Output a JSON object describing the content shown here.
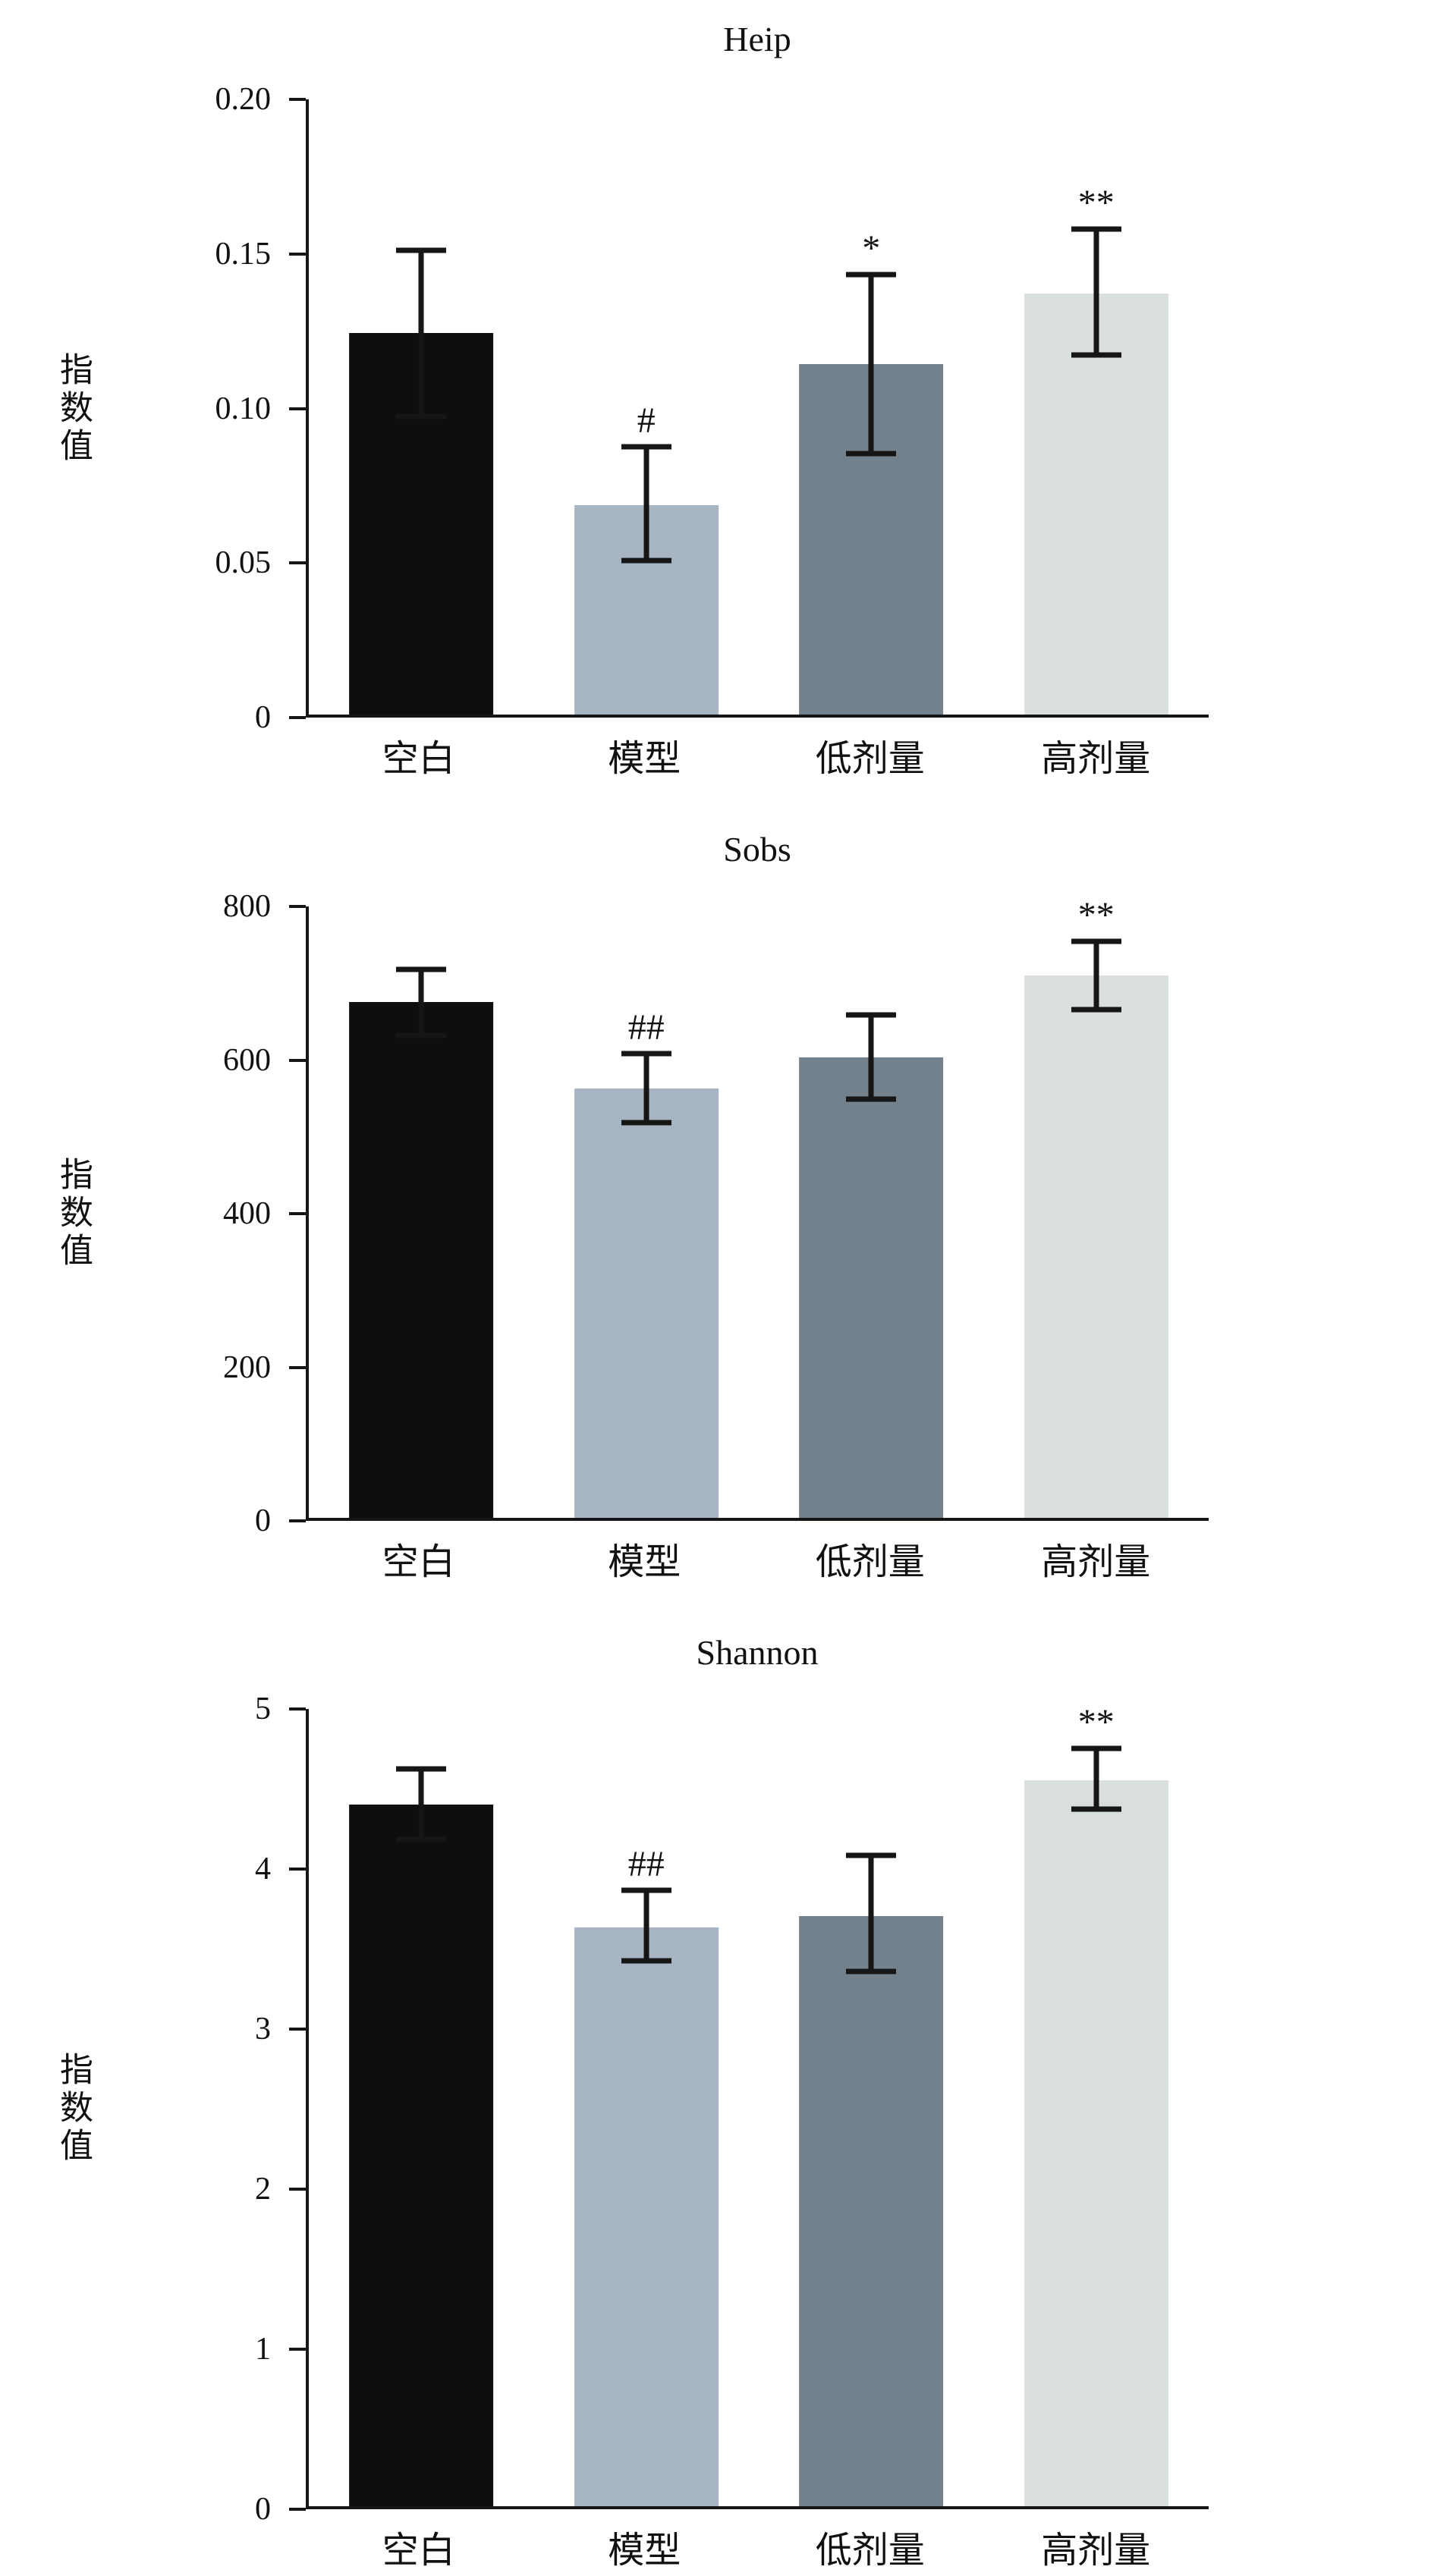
{
  "page": {
    "background": "#ffffff"
  },
  "style": {
    "bar_colors": [
      "#0e0e0e",
      "#a6b5c1",
      "#73818c",
      "#d9dfdf"
    ],
    "axis_color": "#161616",
    "error_color": "#161616"
  },
  "chart_data": [
    {
      "type": "bar",
      "title": "Heip",
      "ylabel": "指数值",
      "ylim": [
        0,
        0.2
      ],
      "yticks": [
        0,
        0.05,
        0.1,
        0.15,
        0.2
      ],
      "ytick_labels": [
        "0",
        "0.05",
        "0.10",
        "0.15",
        "0.20"
      ],
      "categories": [
        "空白",
        "模型",
        "低剂量",
        "高剂量"
      ],
      "values": [
        0.124,
        0.068,
        0.114,
        0.137
      ],
      "error_upper": [
        0.151,
        0.087,
        0.143,
        0.158
      ],
      "error_lower": [
        0.097,
        0.05,
        0.085,
        0.117
      ],
      "annotations": [
        "",
        "#",
        "*",
        "**"
      ],
      "legend": "none",
      "grid": false
    },
    {
      "type": "bar",
      "title": "Sobs",
      "ylabel": "指数值",
      "ylim": [
        0,
        800
      ],
      "yticks": [
        0,
        200,
        400,
        600,
        800
      ],
      "ytick_labels": [
        "0",
        "200",
        "400",
        "600",
        "800"
      ],
      "categories": [
        "空白",
        "模型",
        "低剂量",
        "高剂量"
      ],
      "values": [
        675,
        562,
        603,
        710
      ],
      "error_upper": [
        718,
        608,
        658,
        755
      ],
      "error_lower": [
        632,
        518,
        548,
        665
      ],
      "annotations": [
        "",
        "##",
        "",
        "**"
      ],
      "legend": "none",
      "grid": false
    },
    {
      "type": "bar",
      "title": "Shannon",
      "ylabel": "指数值",
      "ylim": [
        0,
        5
      ],
      "yticks": [
        0,
        1,
        2,
        3,
        4,
        5
      ],
      "ytick_labels": [
        "0",
        "1",
        "2",
        "3",
        "4",
        "5"
      ],
      "categories": [
        "空白",
        "模型",
        "低剂量",
        "高剂量"
      ],
      "values": [
        4.4,
        3.63,
        3.7,
        4.55
      ],
      "error_upper": [
        4.62,
        3.86,
        4.08,
        4.75
      ],
      "error_lower": [
        4.18,
        3.42,
        3.35,
        4.37
      ],
      "annotations": [
        "",
        "##",
        "",
        "**"
      ],
      "legend": "none",
      "grid": false
    }
  ]
}
